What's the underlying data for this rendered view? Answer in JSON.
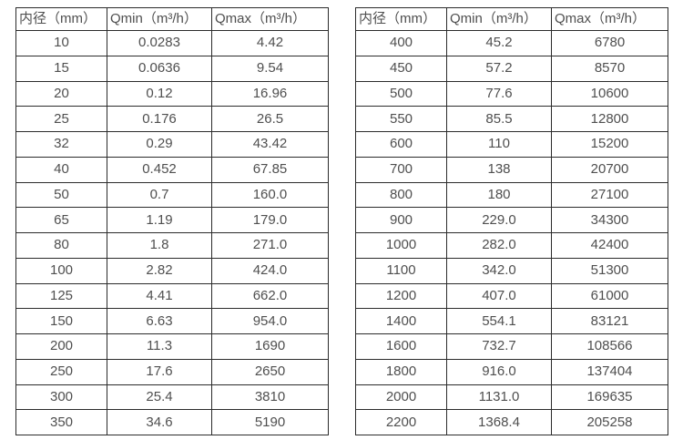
{
  "page": {
    "background": "#ffffff",
    "text_color": "#4f4f4f",
    "border_color": "#2b2b2b"
  },
  "tables": [
    {
      "name": "flow-spec-small-diameters",
      "headers": [
        "内径（mm）",
        "Qmin（m³/h）",
        "Qmax（m³/h）"
      ],
      "rows": [
        [
          "10",
          "0.0283",
          "4.42"
        ],
        [
          "15",
          "0.0636",
          "9.54"
        ],
        [
          "20",
          "0.12",
          "16.96"
        ],
        [
          "25",
          "0.176",
          "26.5"
        ],
        [
          "32",
          "0.29",
          "43.42"
        ],
        [
          "40",
          "0.452",
          "67.85"
        ],
        [
          "50",
          "0.7",
          "160.0"
        ],
        [
          "65",
          "1.19",
          "179.0"
        ],
        [
          "80",
          "1.8",
          "271.0"
        ],
        [
          "100",
          "2.82",
          "424.0"
        ],
        [
          "125",
          "4.41",
          "662.0"
        ],
        [
          "150",
          "6.63",
          "954.0"
        ],
        [
          "200",
          "11.3",
          "1690"
        ],
        [
          "250",
          "17.6",
          "2650"
        ],
        [
          "300",
          "25.4",
          "3810"
        ],
        [
          "350",
          "34.6",
          "5190"
        ]
      ]
    },
    {
      "name": "flow-spec-large-diameters",
      "headers": [
        "内径（mm）",
        "Qmin（m³/h）",
        "Qmax（m³/h）"
      ],
      "rows": [
        [
          "400",
          "45.2",
          "6780"
        ],
        [
          "450",
          "57.2",
          "8570"
        ],
        [
          "500",
          "77.6",
          "10600"
        ],
        [
          "550",
          "85.5",
          "12800"
        ],
        [
          "600",
          "110",
          "15200"
        ],
        [
          "700",
          "138",
          "20700"
        ],
        [
          "800",
          "180",
          "27100"
        ],
        [
          "900",
          "229.0",
          "34300"
        ],
        [
          "1000",
          "282.0",
          "42400"
        ],
        [
          "1100",
          "342.0",
          "51300"
        ],
        [
          "1200",
          "407.0",
          "61000"
        ],
        [
          "1400",
          "554.1",
          "83121"
        ],
        [
          "1600",
          "732.7",
          "108566"
        ],
        [
          "1800",
          "916.0",
          "137404"
        ],
        [
          "2000",
          "1131.0",
          "169635"
        ],
        [
          "2200",
          "1368.4",
          "205258"
        ]
      ]
    }
  ]
}
